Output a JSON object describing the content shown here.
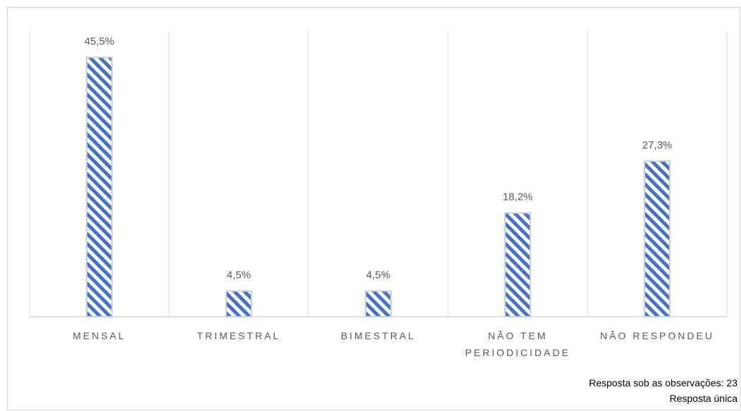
{
  "chart_data": {
    "type": "bar",
    "categories": [
      [
        "MENSAL"
      ],
      [
        "TRIMESTRAL"
      ],
      [
        "BIMESTRAL"
      ],
      [
        "NÃO TEM",
        "PERIODICIDADE"
      ],
      [
        "NÃO RESPONDEU"
      ]
    ],
    "values": [
      45.5,
      4.5,
      4.5,
      18.2,
      27.3
    ],
    "data_labels": [
      "45,5%",
      "4,5%",
      "4,5%",
      "18,2%",
      "27,3%"
    ],
    "ylim": [
      0,
      50
    ],
    "grid": "vertical category separators",
    "legend": "none",
    "bar_pattern": "diagonal stripes",
    "colors": {
      "bar_stripe": "#4472c4",
      "bar_border": "#d0d0d0",
      "grid": "#d9d9d9",
      "axis": "#bfbfbf",
      "text": "#595959"
    }
  },
  "notes": {
    "observations": "Resposta sob as observações: 23",
    "answer_type": "Resposta única"
  }
}
